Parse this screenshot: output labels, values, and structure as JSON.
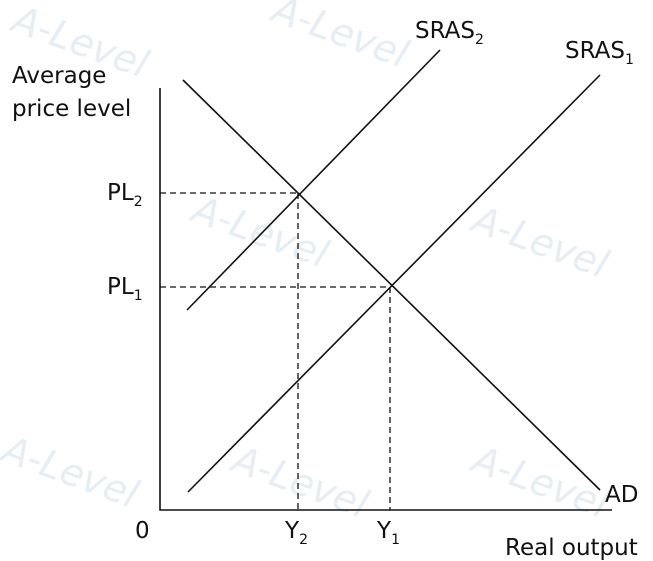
{
  "axes": {
    "y_label": [
      "Average",
      "price level"
    ],
    "x_label": "Real output",
    "origin": "0"
  },
  "curves": [
    {
      "text": "SRAS",
      "sub": "2"
    },
    {
      "text": "SRAS",
      "sub": "1"
    },
    {
      "text": "AD"
    }
  ],
  "price_levels": [
    {
      "text": "PL",
      "sub": "2"
    },
    {
      "text": "PL",
      "sub": "1"
    }
  ],
  "outputs": [
    {
      "text": "Y",
      "sub": "2"
    },
    {
      "text": "Y",
      "sub": "1"
    }
  ],
  "watermark": "A-Level"
}
